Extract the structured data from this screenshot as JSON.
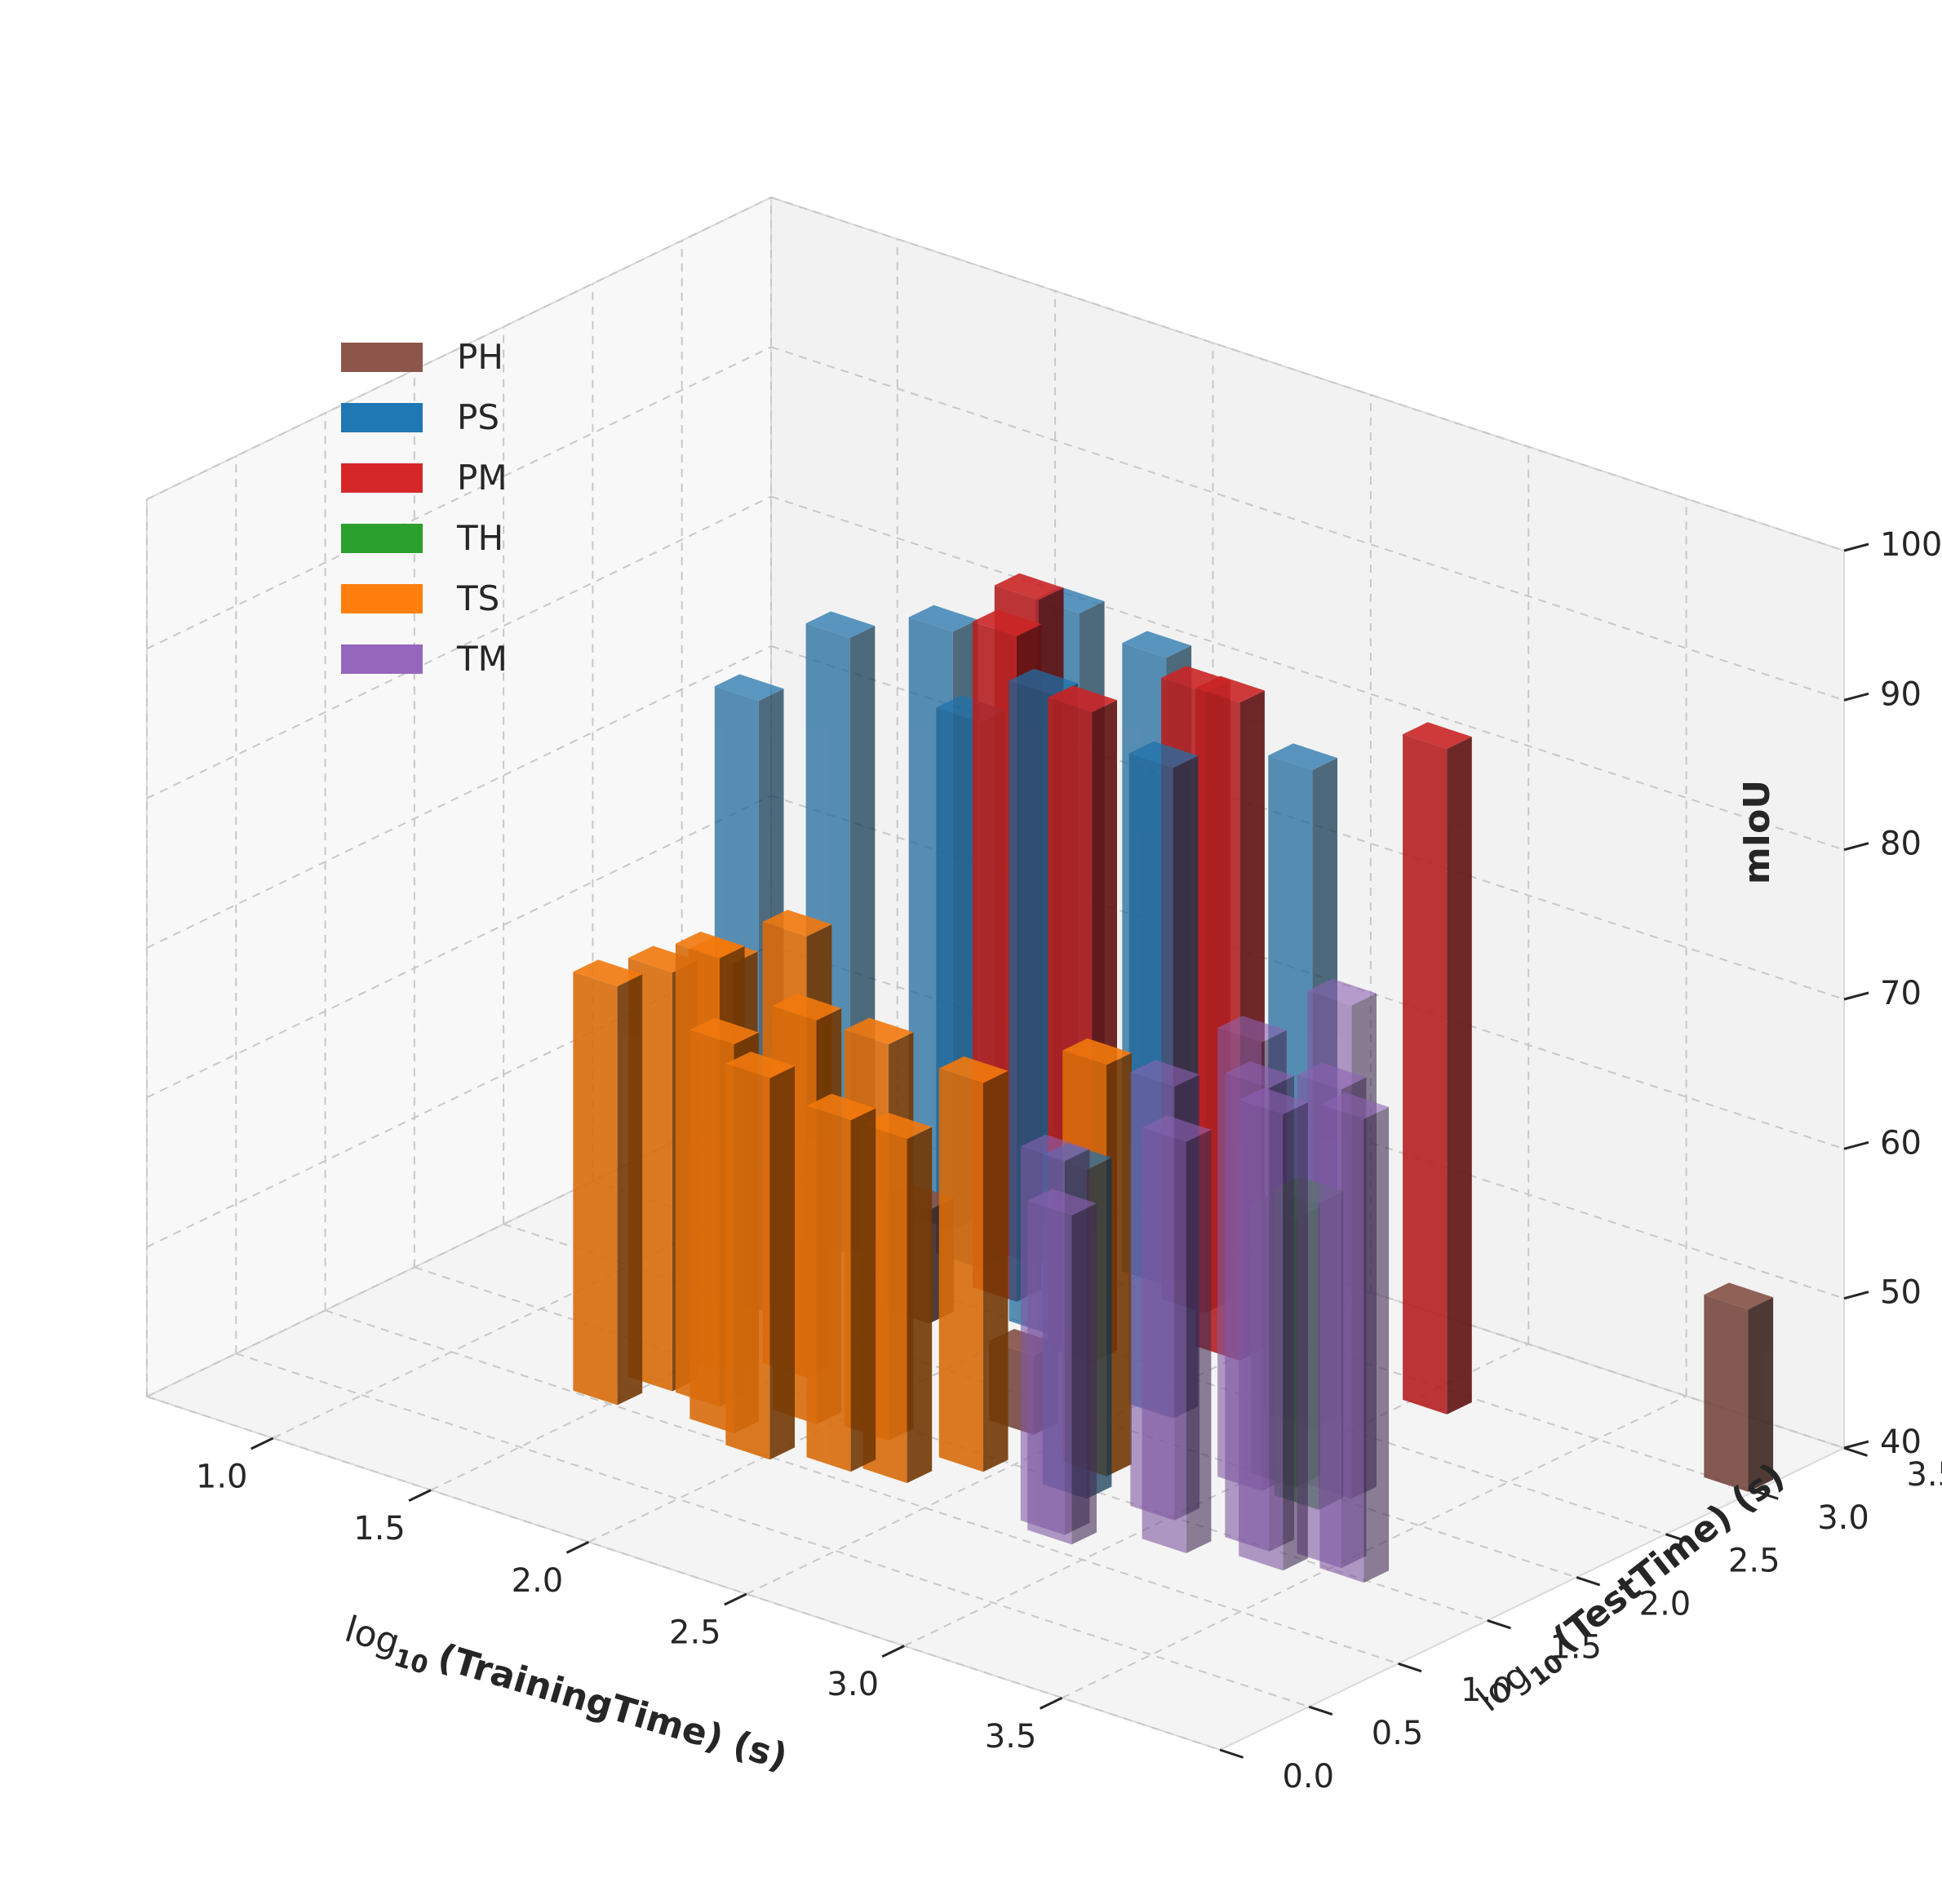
{
  "chart_data": {
    "type": "bar3d",
    "title": "",
    "xlabel_prefix": "log",
    "xlabel_sub": "10",
    "xlabel_rest": "(TrainingTime) (s)",
    "ylabel_prefix": "log",
    "ylabel_sub": "10",
    "ylabel_rest": "(TestTime) (s)",
    "zlabel": "mIoU",
    "x_ticks": [
      "1.0",
      "1.5",
      "2.0",
      "2.5",
      "3.0",
      "3.5"
    ],
    "y_ticks": [
      "0.0",
      "0.5",
      "1.0",
      "1.5",
      "2.0",
      "2.5",
      "3.0",
      "3.5"
    ],
    "z_ticks": [
      "40",
      "50",
      "60",
      "70",
      "80",
      "90",
      "100"
    ],
    "xlim": [
      0.6,
      4.0
    ],
    "ylim": [
      0.0,
      3.5
    ],
    "zlim": [
      40,
      100
    ],
    "grid": true,
    "legend_position": "upper-left",
    "series": [
      {
        "name": "PH",
        "color": "#8c564b",
        "alpha": 0.9,
        "bars": [
          [
            1.72,
            2.35,
            47.6
          ],
          [
            2.35,
            1.82,
            45.3
          ],
          [
            3.92,
            3.05,
            52.2
          ]
        ]
      },
      {
        "name": "PS",
        "color": "#1f77b4",
        "alpha": 0.72,
        "bars": [
          [
            1.35,
            2.05,
            80.8
          ],
          [
            1.3,
            2.65,
            81.2
          ],
          [
            1.4,
            3.05,
            80.0
          ],
          [
            1.6,
            2.85,
            76.5
          ],
          [
            1.66,
            3.3,
            81.6
          ],
          [
            2.0,
            2.55,
            82.8
          ],
          [
            2.02,
            3.15,
            82.0
          ],
          [
            2.55,
            2.25,
            83.5
          ],
          [
            2.85,
            2.5,
            84.0
          ],
          [
            2.7,
            1.5,
            62.0
          ]
        ]
      },
      {
        "name": "PM",
        "color": "#d62728",
        "alpha": 0.9,
        "bars": [
          [
            1.7,
            3.0,
            84.5
          ],
          [
            1.8,
            2.7,
            84.5
          ],
          [
            2.18,
            2.45,
            83.5
          ],
          [
            2.2,
            3.05,
            81.5
          ],
          [
            2.45,
            2.8,
            84.0
          ],
          [
            3.05,
            2.9,
            84.5
          ]
        ]
      },
      {
        "name": "TH",
        "color": "#2ca02c",
        "alpha": 0.72,
        "bars": [
          [
            3.05,
            2.05,
            58.0
          ],
          [
            3.18,
            1.95,
            60.5
          ]
        ]
      },
      {
        "name": "TS",
        "color": "#ff7f0e",
        "alpha": 0.9,
        "bars": [
          [
            1.45,
            1.08,
            68.0
          ],
          [
            1.5,
            1.3,
            68.0
          ],
          [
            1.55,
            1.55,
            67.5
          ],
          [
            1.65,
            1.3,
            70.0
          ],
          [
            1.7,
            1.7,
            69.5
          ],
          [
            1.78,
            1.15,
            66.0
          ],
          [
            1.9,
            1.4,
            67.0
          ],
          [
            1.95,
            1.05,
            65.5
          ],
          [
            2.1,
            1.45,
            66.5
          ],
          [
            2.15,
            1.15,
            63.5
          ],
          [
            2.3,
            1.2,
            63.0
          ],
          [
            2.4,
            1.45,
            66.0
          ],
          [
            2.65,
            1.7,
            67.5
          ]
        ]
      },
      {
        "name": "TM",
        "color": "#9467bd",
        "alpha": 0.6,
        "bars": [
          [
            2.8,
            1.2,
            65.0
          ],
          [
            2.85,
            1.15,
            62.0
          ],
          [
            2.95,
            1.55,
            69.0
          ],
          [
            3.0,
            1.95,
            70.0
          ],
          [
            3.1,
            1.35,
            67.5
          ],
          [
            3.25,
            1.55,
            71.0
          ],
          [
            3.35,
            1.45,
            70.5
          ],
          [
            3.45,
            1.6,
            72.0
          ],
          [
            3.2,
            2.1,
            73.0
          ],
          [
            3.55,
            1.55,
            71.0
          ]
        ]
      }
    ]
  }
}
